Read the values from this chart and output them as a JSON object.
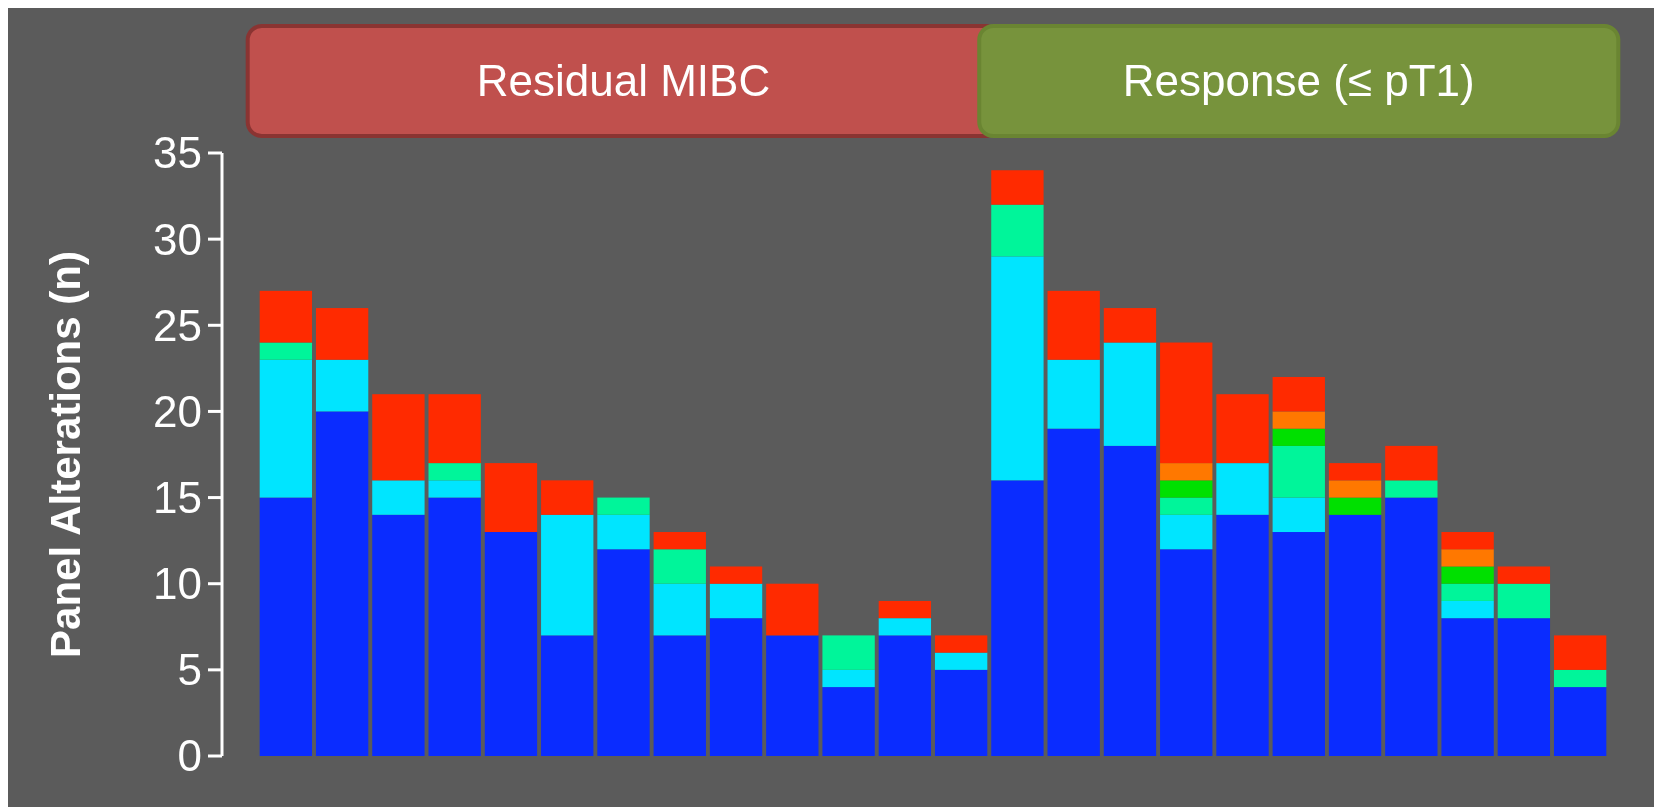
{
  "chart_data": {
    "type": "bar",
    "stacked": true,
    "ylabel": "Panel Alterations (n)",
    "annotations": [
      "Residual MIBC",
      "Response (≤ pT1)"
    ],
    "categories": [
      null,
      null,
      null,
      null,
      null,
      null,
      null,
      null,
      null,
      null,
      null,
      null,
      null,
      null,
      null,
      null,
      null,
      null,
      null,
      null,
      null,
      null,
      null,
      null
    ],
    "ylim": [
      0,
      35
    ],
    "yticks": [
      0,
      5,
      10,
      15,
      20,
      25,
      30,
      35
    ],
    "grid": false,
    "series": [
      {
        "color": "#0a2cff",
        "values": [
          15,
          20,
          14,
          15,
          13,
          7,
          12,
          7,
          8,
          7,
          4,
          7,
          5,
          16,
          19,
          18,
          12,
          14,
          13,
          14,
          15,
          8,
          8,
          4
        ]
      },
      {
        "color": "#00e5ff",
        "values": [
          8,
          3,
          2,
          1,
          0,
          7,
          2,
          3,
          2,
          0,
          1,
          1,
          1,
          13,
          4,
          6,
          2,
          3,
          2,
          0,
          0,
          1,
          0,
          0
        ]
      },
      {
        "color": "#00f59a",
        "values": [
          1,
          0,
          0,
          1,
          0,
          0,
          1,
          2,
          0,
          0,
          2,
          0,
          0,
          3,
          0,
          0,
          1,
          0,
          3,
          0,
          1,
          1,
          2,
          1
        ]
      },
      {
        "color": "#00e000",
        "values": [
          0,
          0,
          0,
          0,
          0,
          0,
          0,
          0,
          0,
          0,
          0,
          0,
          0,
          0,
          0,
          0,
          1,
          0,
          1,
          1,
          0,
          1,
          0,
          0
        ]
      },
      {
        "color": "#ff7800",
        "values": [
          0,
          0,
          0,
          0,
          0,
          0,
          0,
          0,
          0,
          0,
          0,
          0,
          0,
          0,
          0,
          0,
          1,
          0,
          1,
          1,
          0,
          1,
          0,
          0
        ]
      },
      {
        "color": "#ff2a00",
        "values": [
          3,
          3,
          5,
          4,
          4,
          2,
          0,
          1,
          1,
          3,
          0,
          1,
          1,
          2,
          4,
          2,
          7,
          4,
          2,
          1,
          2,
          1,
          1,
          2
        ]
      }
    ]
  }
}
